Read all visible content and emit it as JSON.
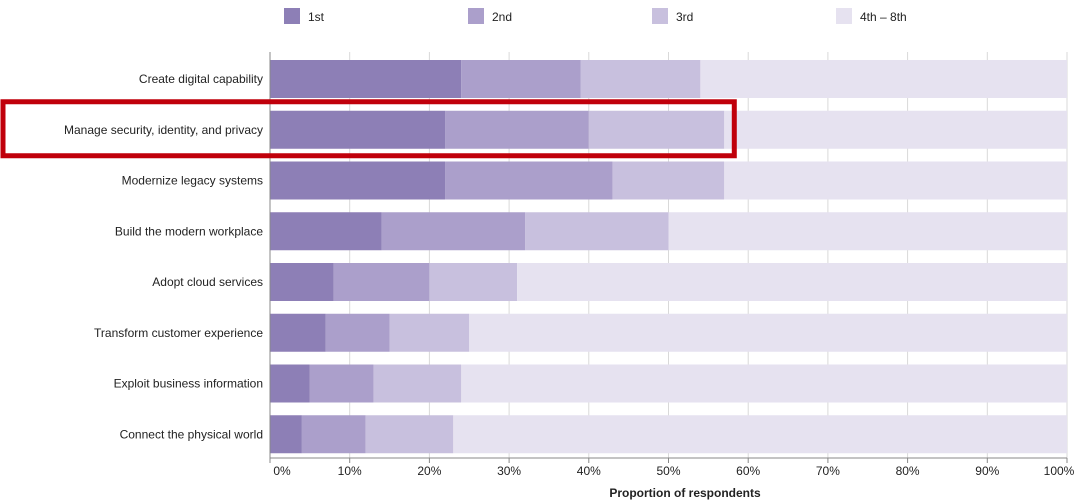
{
  "chart_data": {
    "type": "bar",
    "orientation": "horizontal",
    "stacked": true,
    "categories": [
      "Create digital capability",
      "Manage security, identity, and privacy",
      "Modernize legacy systems",
      "Build the modern workplace",
      "Adopt cloud services",
      "Transform customer experience",
      "Exploit business information",
      "Connect the physical world"
    ],
    "series": [
      {
        "name": "1st",
        "color": "#8d7fb6",
        "values": [
          24,
          22,
          22,
          14,
          8,
          7,
          5,
          4
        ]
      },
      {
        "name": "2nd",
        "color": "#ab9fcb",
        "values": [
          15,
          18,
          21,
          18,
          12,
          8,
          8,
          8
        ]
      },
      {
        "name": "3rd",
        "color": "#c8c0de",
        "values": [
          15,
          17,
          14,
          18,
          11,
          10,
          11,
          11
        ]
      },
      {
        "name": "4th – 8th",
        "color": "#e6e2f0",
        "values": [
          46,
          43,
          43,
          50,
          69,
          75,
          76,
          77
        ]
      }
    ],
    "x_ticks": [
      "0%",
      "10%",
      "20%",
      "30%",
      "40%",
      "50%",
      "60%",
      "70%",
      "80%",
      "90%",
      "100%"
    ],
    "xlabel": "Proportion of respondents",
    "ylabel": "",
    "title": "",
    "xlim": [
      0,
      100
    ],
    "grid": true,
    "legend_position": "top",
    "highlighted_category": "Manage security, identity, and privacy",
    "highlight_color": "#c0000b"
  }
}
